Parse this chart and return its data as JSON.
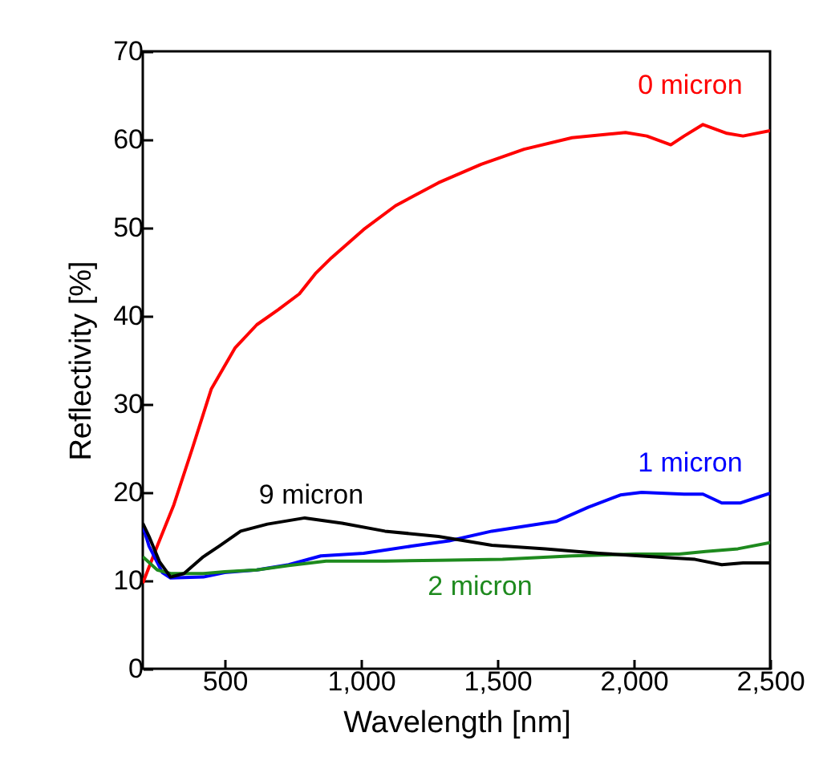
{
  "chart_data": {
    "type": "line",
    "xlabel": "Wavelength [nm]",
    "ylabel": "Reflectivity [%]",
    "xlim": [
      200,
      2500
    ],
    "xticks": [
      500,
      {
        "value": 1000,
        "label": "1,000"
      },
      {
        "value": 1500,
        "label": "1,500"
      },
      {
        "value": 2000,
        "label": "2,000"
      },
      {
        "value": 2500,
        "label": "2,500"
      }
    ],
    "ylim": [
      0,
      70
    ],
    "yticks": [
      0,
      10,
      20,
      30,
      40,
      50,
      60,
      70
    ],
    "grid": false,
    "marker": "none",
    "line_style": "solid",
    "series": [
      {
        "name": "0 micron",
        "color": "#ff0000",
        "x": [
          200,
          253,
          314,
          382,
          451,
          539,
          618,
          696,
          774,
          833,
          892,
          1010,
          1127,
          1284,
          1441,
          1598,
          1774,
          1970,
          2048,
          2136,
          2185,
          2254,
          2342,
          2401,
          2500
        ],
        "values": [
          9.7,
          13.9,
          18.6,
          25,
          31.7,
          36.4,
          39,
          40.7,
          42.5,
          44.8,
          46.6,
          49.8,
          52.5,
          55.1,
          57.2,
          58.9,
          60.2,
          60.8,
          60.4,
          59.4,
          60.4,
          61.7,
          60.7,
          60.4,
          61
        ]
      },
      {
        "name": "1 micron",
        "color": "#0000ff",
        "x": [
          200,
          223,
          272,
          302,
          422,
          500,
          618,
          735,
          853,
          1010,
          1186,
          1323,
          1480,
          1715,
          1833,
          1951,
          2029,
          2185,
          2254,
          2323,
          2392,
          2460,
          2500
        ],
        "values": [
          16.2,
          13.9,
          10.9,
          10.3,
          10.4,
          10.9,
          11.2,
          11.8,
          12.8,
          13.1,
          13.9,
          14.5,
          15.6,
          16.7,
          18.3,
          19.7,
          20,
          19.8,
          19.8,
          18.8,
          18.8,
          19.5,
          19.9
        ]
      },
      {
        "name": "2 micron",
        "color": "#1e8a1e",
        "x": [
          200,
          253,
          302,
          422,
          500,
          618,
          735,
          872,
          1088,
          1284,
          1519,
          1774,
          2010,
          2166,
          2264,
          2382,
          2500
        ],
        "values": [
          12.7,
          11.2,
          10.8,
          10.8,
          11,
          11.2,
          11.7,
          12.2,
          12.2,
          12.3,
          12.4,
          12.8,
          13,
          13,
          13.3,
          13.6,
          14.3
        ]
      },
      {
        "name": "9 micron",
        "color": "#000000",
        "x": [
          200,
          223,
          262,
          302,
          351,
          422,
          480,
          559,
          657,
          794,
          931,
          1088,
          1284,
          1480,
          1676,
          1872,
          2068,
          2225,
          2323,
          2401,
          2500
        ],
        "values": [
          16.5,
          15,
          12.1,
          10.4,
          10.8,
          12.7,
          13.9,
          15.6,
          16.4,
          17.1,
          16.5,
          15.6,
          15,
          14,
          13.6,
          13.1,
          12.7,
          12.4,
          11.8,
          12,
          12
        ]
      }
    ]
  }
}
